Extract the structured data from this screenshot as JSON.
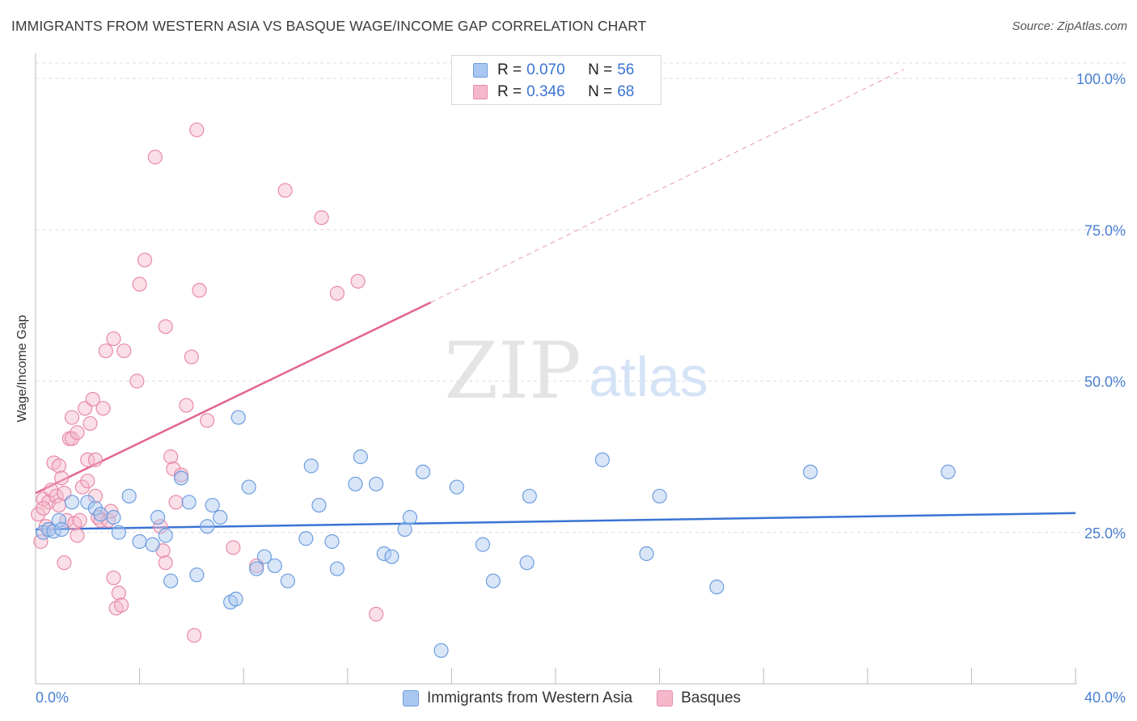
{
  "title": "IMMIGRANTS FROM WESTERN ASIA VS BASQUE WAGE/INCOME GAP CORRELATION CHART",
  "source": "Source: ZipAtlas.com",
  "watermark": {
    "zip": "ZIP",
    "atlas": "atlas"
  },
  "legend": {
    "rows": [
      {
        "r_label": "R =",
        "r_value": "0.070",
        "n_label": "N =",
        "n_value": "56"
      },
      {
        "r_label": "R =",
        "r_value": "0.346",
        "n_label": "N =",
        "n_value": "68"
      }
    ]
  },
  "bottom_legend": [
    "Immigrants from Western Asia",
    "Basques"
  ],
  "colors": {
    "blue_fill": "#a9c7f0",
    "blue_stroke": "#6d9de0",
    "blue_line": "#3a74d4",
    "pink_fill": "#f5b8ca",
    "pink_stroke": "#e98aa8",
    "pink_line": "#e2658f",
    "tick_text": "#4a7fd1",
    "grid": "#dddddd"
  },
  "chart_data": {
    "type": "scatter",
    "title": "IMMIGRANTS FROM WESTERN ASIA VS BASQUE WAGE/INCOME GAP CORRELATION CHART",
    "xlabel": "",
    "ylabel": "Wage/Income Gap",
    "xlim": [
      0,
      40
    ],
    "ylim": [
      0,
      105
    ],
    "x_tick_labels": [
      "0.0%",
      "40.0%"
    ],
    "y_ticks": [
      25,
      50,
      75,
      100
    ],
    "y_tick_labels": [
      "25.0%",
      "50.0%",
      "75.0%",
      "100.0%"
    ],
    "grid": true,
    "legend_position": "top-center",
    "series": [
      {
        "name": "Immigrants from Western Asia",
        "color": "#6d9de0",
        "trend": {
          "x0": 0,
          "y0": 25.5,
          "x1": 40,
          "y1": 28.2
        },
        "points": [
          [
            0.3,
            25.0
          ],
          [
            0.5,
            25.5
          ],
          [
            0.7,
            25.2
          ],
          [
            0.9,
            27.0
          ],
          [
            1.0,
            25.5
          ],
          [
            1.4,
            30.0
          ],
          [
            2.0,
            30.0
          ],
          [
            2.3,
            29.0
          ],
          [
            2.5,
            28.0
          ],
          [
            3.0,
            27.5
          ],
          [
            3.2,
            25.0
          ],
          [
            3.6,
            31.0
          ],
          [
            4.0,
            23.5
          ],
          [
            4.5,
            23.0
          ],
          [
            4.7,
            27.5
          ],
          [
            5.0,
            24.5
          ],
          [
            5.2,
            17.0
          ],
          [
            5.6,
            34.0
          ],
          [
            5.9,
            30.0
          ],
          [
            6.2,
            18.0
          ],
          [
            6.6,
            26.0
          ],
          [
            6.8,
            29.5
          ],
          [
            7.1,
            27.5
          ],
          [
            7.5,
            13.5
          ],
          [
            7.7,
            14.0
          ],
          [
            7.8,
            44.0
          ],
          [
            8.2,
            32.5
          ],
          [
            8.5,
            19.0
          ],
          [
            8.8,
            21.0
          ],
          [
            9.2,
            19.5
          ],
          [
            9.7,
            17.0
          ],
          [
            10.4,
            24.0
          ],
          [
            10.6,
            36.0
          ],
          [
            10.9,
            29.5
          ],
          [
            11.4,
            23.5
          ],
          [
            11.6,
            19.0
          ],
          [
            12.3,
            33.0
          ],
          [
            12.5,
            37.5
          ],
          [
            13.1,
            33.0
          ],
          [
            13.4,
            21.5
          ],
          [
            13.7,
            21.0
          ],
          [
            14.2,
            25.5
          ],
          [
            14.4,
            27.5
          ],
          [
            14.9,
            35.0
          ],
          [
            15.6,
            5.5
          ],
          [
            16.2,
            32.5
          ],
          [
            17.2,
            23.0
          ],
          [
            17.6,
            17.0
          ],
          [
            18.9,
            20.0
          ],
          [
            19.0,
            31.0
          ],
          [
            21.8,
            37.0
          ],
          [
            23.5,
            21.5
          ],
          [
            24.0,
            31.0
          ],
          [
            26.2,
            16.0
          ],
          [
            29.8,
            35.0
          ],
          [
            35.1,
            35.0
          ]
        ]
      },
      {
        "name": "Basques",
        "color": "#e98aa8",
        "trend": {
          "x0": 0,
          "y0": 31.5,
          "x1": 15.2,
          "y1": 63.0,
          "dash_to_x": 33.4,
          "dash_to_y": 101.5
        },
        "points": [
          [
            0.1,
            28.0
          ],
          [
            0.2,
            23.5
          ],
          [
            0.3,
            30.5
          ],
          [
            0.4,
            26.0
          ],
          [
            0.5,
            30.0
          ],
          [
            0.5,
            25.5
          ],
          [
            0.6,
            32.0
          ],
          [
            0.7,
            36.5
          ],
          [
            0.8,
            31.0
          ],
          [
            0.9,
            29.5
          ],
          [
            0.9,
            36.0
          ],
          [
            1.0,
            34.0
          ],
          [
            1.1,
            31.5
          ],
          [
            1.1,
            20.0
          ],
          [
            1.2,
            27.0
          ],
          [
            1.3,
            40.5
          ],
          [
            1.4,
            40.5
          ],
          [
            1.4,
            44.0
          ],
          [
            1.5,
            26.5
          ],
          [
            1.6,
            41.5
          ],
          [
            1.7,
            27.0
          ],
          [
            1.8,
            32.5
          ],
          [
            1.9,
            45.5
          ],
          [
            2.0,
            33.5
          ],
          [
            2.0,
            37.0
          ],
          [
            2.1,
            43.0
          ],
          [
            2.2,
            47.0
          ],
          [
            2.3,
            31.0
          ],
          [
            2.3,
            37.0
          ],
          [
            2.4,
            27.5
          ],
          [
            2.5,
            27.0
          ],
          [
            2.6,
            45.5
          ],
          [
            2.7,
            55.0
          ],
          [
            2.8,
            27.0
          ],
          [
            2.9,
            28.5
          ],
          [
            3.0,
            57.0
          ],
          [
            3.0,
            17.5
          ],
          [
            3.1,
            12.5
          ],
          [
            3.2,
            15.0
          ],
          [
            3.3,
            13.0
          ],
          [
            3.4,
            55.0
          ],
          [
            3.9,
            50.0
          ],
          [
            4.0,
            66.0
          ],
          [
            4.2,
            70.0
          ],
          [
            4.6,
            87.0
          ],
          [
            4.8,
            26.0
          ],
          [
            4.9,
            22.0
          ],
          [
            5.0,
            20.0
          ],
          [
            5.0,
            59.0
          ],
          [
            5.2,
            37.5
          ],
          [
            5.3,
            35.5
          ],
          [
            5.4,
            30.0
          ],
          [
            5.6,
            34.5
          ],
          [
            5.8,
            46.0
          ],
          [
            6.0,
            54.0
          ],
          [
            6.1,
            8.0
          ],
          [
            6.2,
            91.5
          ],
          [
            6.3,
            65.0
          ],
          [
            6.6,
            43.5
          ],
          [
            7.6,
            22.5
          ],
          [
            8.5,
            19.5
          ],
          [
            9.6,
            81.5
          ],
          [
            11.0,
            77.0
          ],
          [
            11.6,
            64.5
          ],
          [
            12.4,
            66.5
          ],
          [
            13.1,
            11.5
          ],
          [
            0.3,
            29.0
          ],
          [
            1.6,
            24.5
          ]
        ]
      }
    ]
  }
}
